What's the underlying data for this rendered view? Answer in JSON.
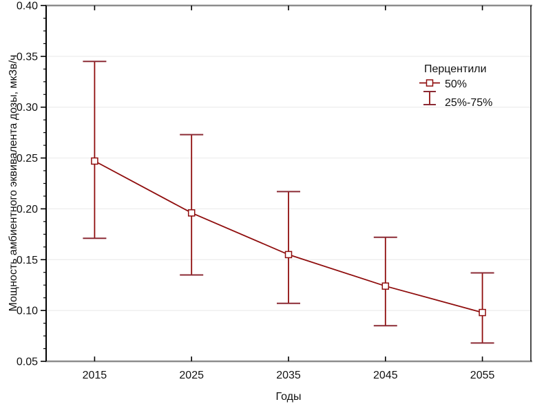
{
  "figure": {
    "background": "#ffffff"
  },
  "chart_data": {
    "type": "line",
    "title": "",
    "xlabel": "Годы",
    "ylabel": "Мощность амбиентного эквивалента дозы, мкЗв/ч",
    "x": [
      2015,
      2025,
      2035,
      2045,
      2055
    ],
    "x_tick_labels": [
      "2015",
      "2025",
      "2035",
      "2045",
      "2055"
    ],
    "series": [
      {
        "name": "50%",
        "role": "median",
        "values": [
          0.247,
          0.196,
          0.155,
          0.124,
          0.098
        ]
      },
      {
        "name": "25%",
        "role": "lower-whisker",
        "values": [
          0.171,
          0.135,
          0.107,
          0.085,
          0.068
        ]
      },
      {
        "name": "75%",
        "role": "upper-whisker",
        "values": [
          0.345,
          0.273,
          0.217,
          0.172,
          0.137
        ]
      }
    ],
    "xlim": [
      2010,
      2060
    ],
    "ylim": [
      0.05,
      0.4
    ],
    "y_tick_step": 0.05,
    "y_tick_labels": [
      "0.05",
      "0.10",
      "0.15",
      "0.20",
      "0.25",
      "0.30",
      "0.35",
      "0.40"
    ],
    "y_minor_divisions_per_major": 4,
    "grid": "horizontal-major-only",
    "legend": {
      "title": "Перцентили",
      "position": "top-right",
      "items": [
        {
          "label": "50%",
          "glyph": "square-median-marker"
        },
        {
          "label": "25%-75%",
          "glyph": "error-bar-whisker"
        }
      ]
    },
    "colors": {
      "series_line": "#8f0d0d",
      "marker_fill": "#ffffff",
      "whisker_cap": "#8b2a34",
      "grid_line": "#ececec",
      "frame_top_bottom": "#8c8c8c",
      "frame_left_right": "#000000",
      "text": "#111111",
      "background": "#ffffff"
    }
  }
}
